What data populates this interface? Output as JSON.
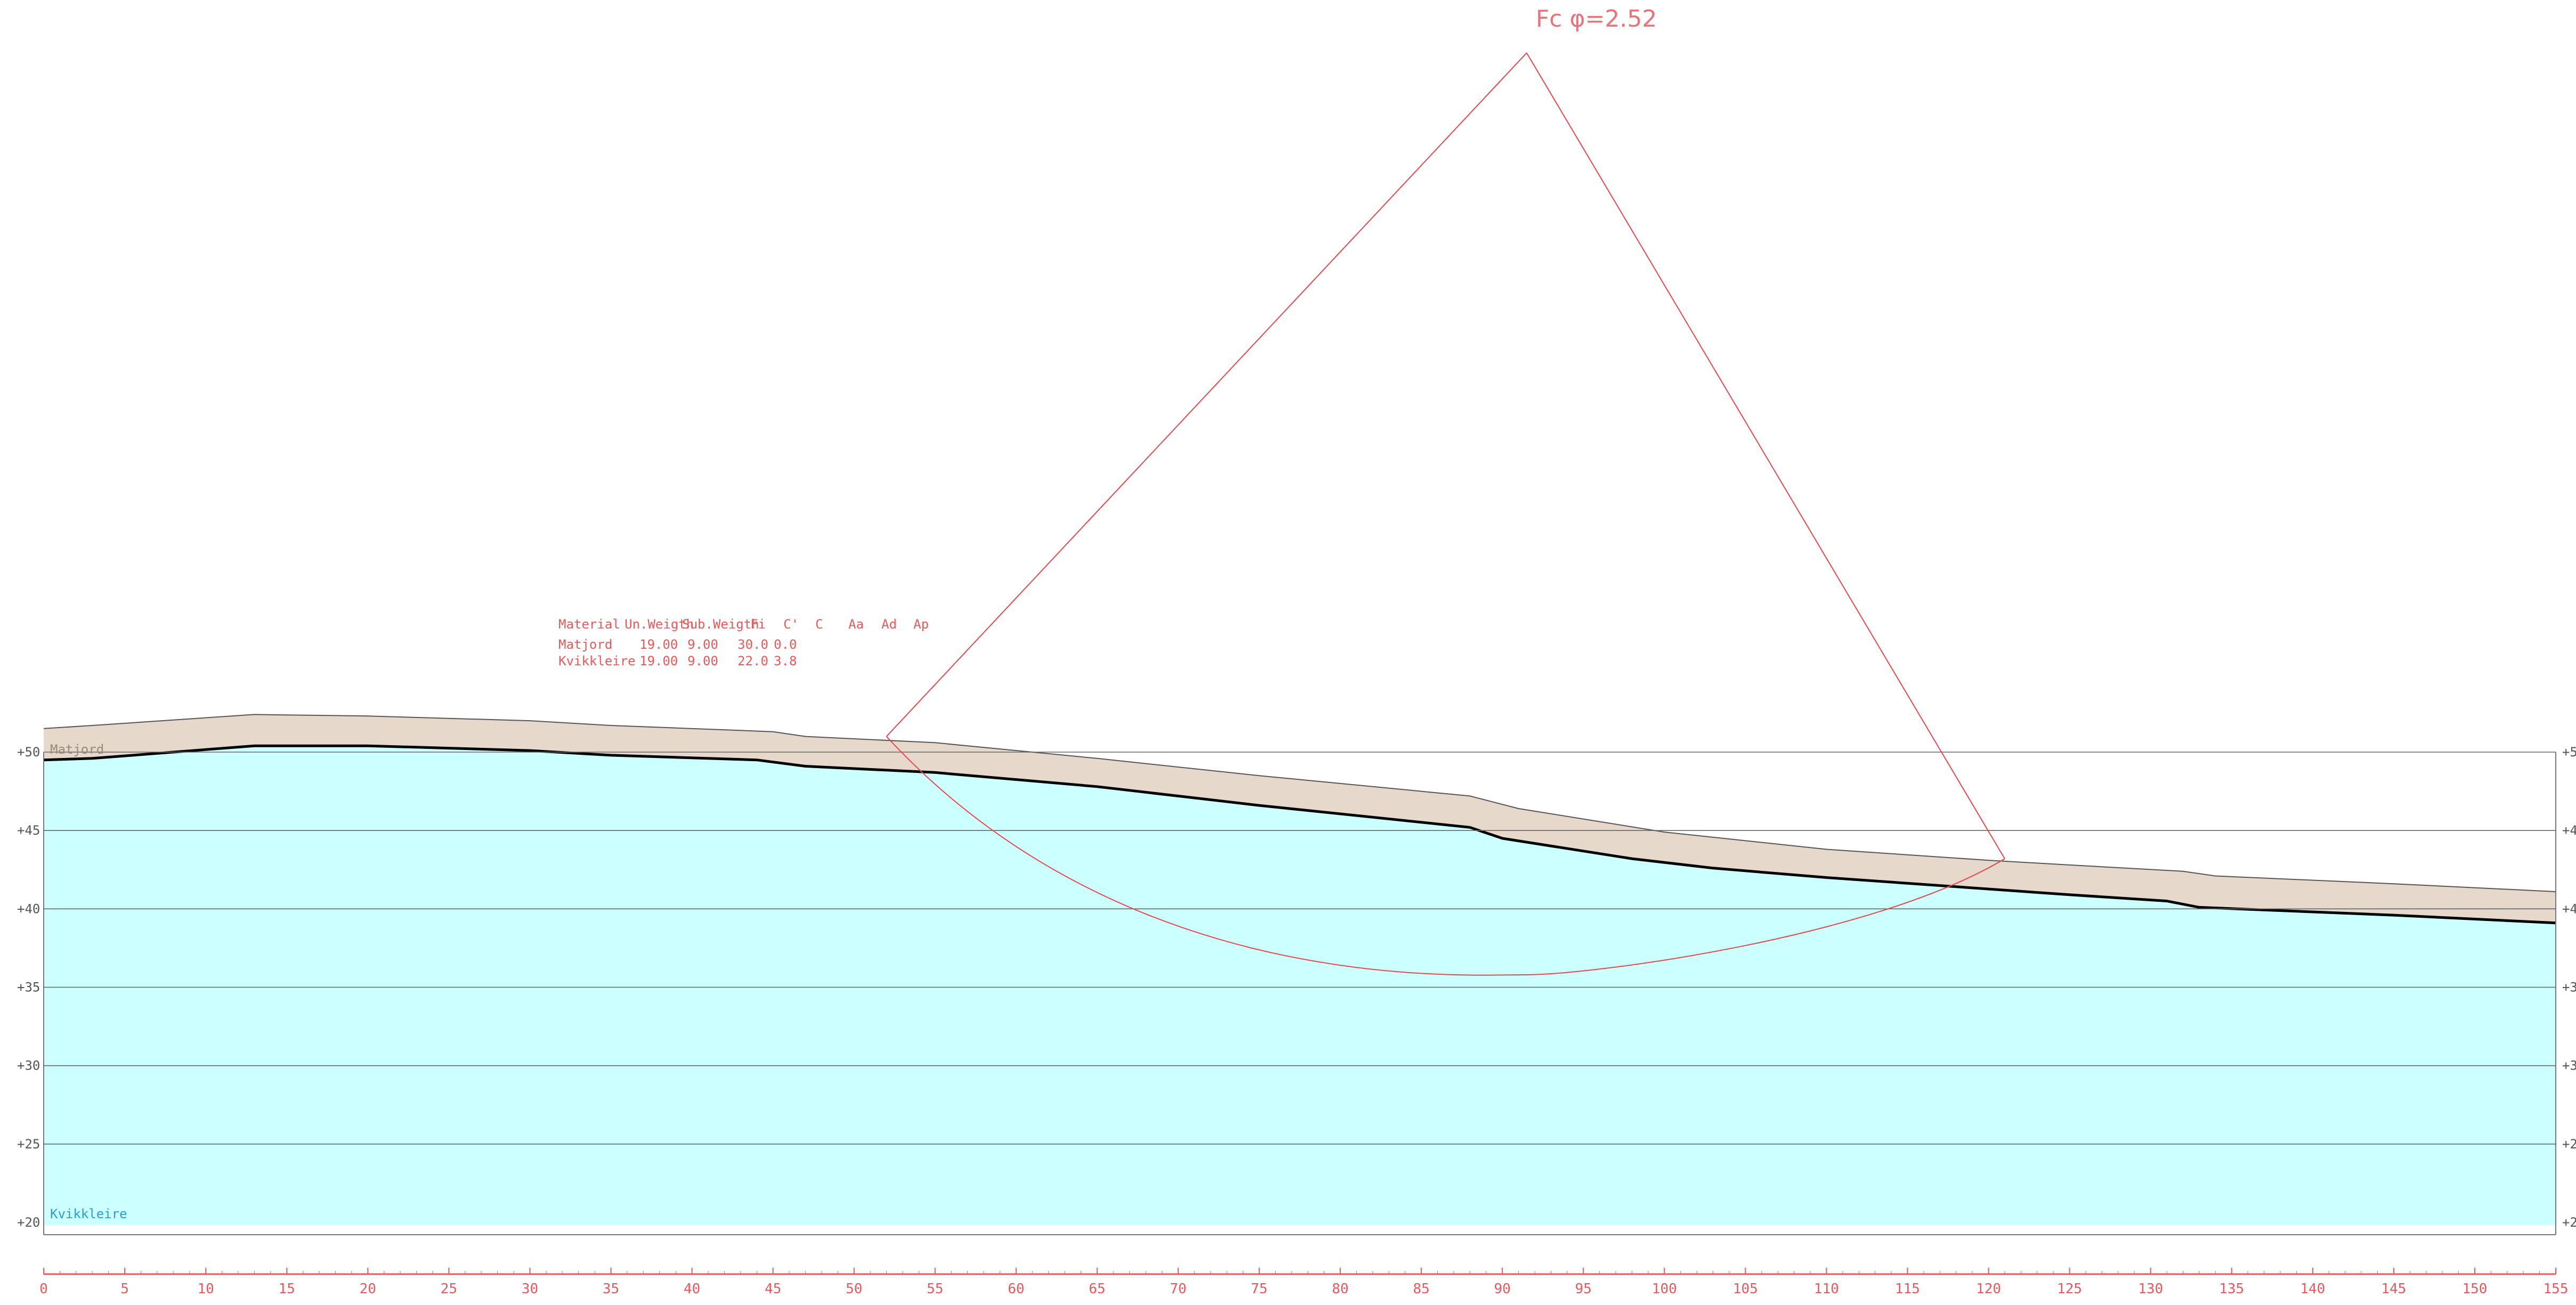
{
  "title": "Fc φ=2.52",
  "materials_table": {
    "headers": [
      "Material",
      "Un.Weigth",
      "Sub.Weigth",
      "Fi",
      "C'",
      "C",
      "Aa",
      "Ad",
      "Ap"
    ],
    "rows": [
      [
        "Matjord",
        "19.00",
        "9.00",
        "30.0",
        "0.0"
      ],
      [
        "Kvikkleire",
        "19.00",
        "9.00",
        "22.0",
        "3.8"
      ]
    ]
  },
  "layers": {
    "top_label": "Matjord",
    "bottom_label": "Kvikkleire"
  },
  "colors": {
    "topsoil": "#e6d8cb",
    "clay": "#ccffff",
    "slip": "#e8474a",
    "axis_text": "#e85a5a",
    "grid": "#666666"
  },
  "chart_data": {
    "type": "cross-section",
    "x_axis": {
      "min": 0,
      "max": 155,
      "ticks": [
        0,
        5,
        10,
        15,
        20,
        25,
        30,
        35,
        40,
        45,
        50,
        55,
        60,
        65,
        70,
        75,
        80,
        85,
        90,
        95,
        100,
        105,
        110,
        115,
        120,
        125,
        130,
        135,
        140,
        145,
        150,
        155
      ]
    },
    "y_axis": {
      "min": 20,
      "max": 50,
      "ticks": [
        20,
        25,
        30,
        35,
        40,
        45,
        50
      ],
      "tick_labels": [
        "+20",
        "+25",
        "+30",
        "+35",
        "+40",
        "+45",
        "+50"
      ],
      "right_tick_labels": [
        "+2",
        "+2",
        "+3",
        "+3",
        "+4",
        "+4",
        "+5"
      ]
    },
    "ground_surface": [
      [
        0,
        51.5
      ],
      [
        3,
        51.7
      ],
      [
        13,
        52.4
      ],
      [
        20,
        52.3
      ],
      [
        30,
        52.0
      ],
      [
        35,
        51.7
      ],
      [
        45,
        51.3
      ],
      [
        47,
        51.0
      ],
      [
        55,
        50.6
      ],
      [
        65,
        49.6
      ],
      [
        75,
        48.5
      ],
      [
        88,
        47.2
      ],
      [
        91,
        46.4
      ],
      [
        100,
        44.9
      ],
      [
        110,
        43.8
      ],
      [
        120,
        43.1
      ],
      [
        125,
        42.8
      ],
      [
        132,
        42.4
      ],
      [
        134,
        42.1
      ],
      [
        145,
        41.6
      ],
      [
        155,
        41.1
      ]
    ],
    "clay_surface": [
      [
        0,
        49.5
      ],
      [
        3,
        49.6
      ],
      [
        13,
        50.4
      ],
      [
        20,
        50.4
      ],
      [
        30,
        50.1
      ],
      [
        35,
        49.8
      ],
      [
        44,
        49.5
      ],
      [
        47,
        49.1
      ],
      [
        55,
        48.7
      ],
      [
        65,
        47.8
      ],
      [
        75,
        46.6
      ],
      [
        88,
        45.2
      ],
      [
        90,
        44.5
      ],
      [
        98,
        43.2
      ],
      [
        103,
        42.6
      ],
      [
        110,
        42.0
      ],
      [
        125,
        40.9
      ],
      [
        131,
        40.5
      ],
      [
        133,
        40.1
      ],
      [
        145,
        39.6
      ],
      [
        155,
        39.1
      ]
    ],
    "slip_circle": {
      "center": [
        91.5,
        94.6
      ],
      "entry": [
        52.0,
        51.0
      ],
      "exit": [
        121.0,
        43.2
      ],
      "lowest": [
        91.5,
        35.8
      ]
    }
  }
}
